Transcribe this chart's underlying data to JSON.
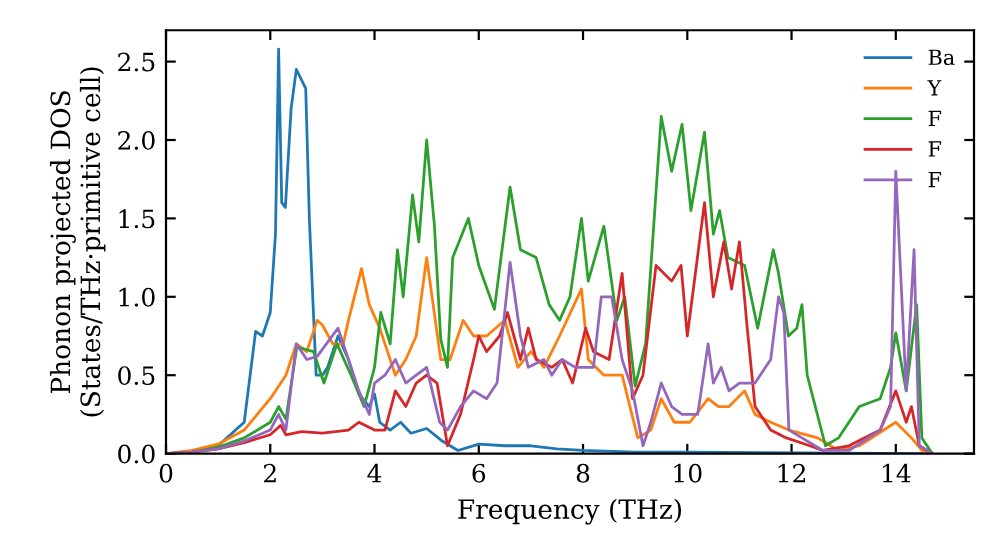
{
  "chart_data": {
    "type": "line",
    "xlabel": "Frequency (THz)",
    "ylabel": "Phonon projected DOS\n(States/THz·primitive cell)",
    "xlim": [
      0,
      15.5
    ],
    "ylim": [
      0,
      2.7
    ],
    "xticks": [
      0,
      2,
      4,
      6,
      8,
      10,
      12,
      14
    ],
    "yticks": [
      {
        "value": 0,
        "label": "0.0"
      },
      0.5,
      {
        "value": 1,
        "label": "1.0"
      },
      1.5,
      {
        "value": 2,
        "label": "2.0"
      },
      2.5
    ],
    "legend": "top right",
    "grid": false,
    "marker": "none",
    "line_style": "solid",
    "series": [
      {
        "name": "Ba",
        "color": "#1f77b4",
        "x": [
          0,
          0.5,
          1.0,
          1.5,
          1.72,
          1.85,
          2.0,
          2.1,
          2.16,
          2.22,
          2.29,
          2.4,
          2.5,
          2.68,
          2.75,
          2.88,
          3.0,
          3.1,
          3.3,
          3.5,
          3.7,
          3.9,
          4.0,
          4.1,
          4.3,
          4.5,
          4.7,
          5.0,
          5.3,
          5.6,
          6.0,
          6.5,
          7.0,
          7.5,
          8.0,
          9.0,
          10.0,
          14.5
        ],
        "values": [
          0,
          0.01,
          0.05,
          0.2,
          0.78,
          0.75,
          0.9,
          1.4,
          2.58,
          1.6,
          1.57,
          2.2,
          2.45,
          2.33,
          1.5,
          0.5,
          0.5,
          0.55,
          0.75,
          0.6,
          0.38,
          0.3,
          0.38,
          0.2,
          0.15,
          0.2,
          0.13,
          0.16,
          0.08,
          0.02,
          0.06,
          0.05,
          0.05,
          0.03,
          0.02,
          0.01,
          0.01,
          0
        ]
      },
      {
        "name": "Y",
        "color": "#ff7f0e",
        "x": [
          0,
          0.5,
          1.0,
          1.5,
          2.0,
          2.3,
          2.5,
          2.7,
          2.9,
          3.0,
          3.2,
          3.4,
          3.5,
          3.75,
          3.9,
          4.1,
          4.4,
          4.6,
          4.8,
          5.0,
          5.27,
          5.45,
          5.7,
          5.9,
          6.15,
          6.5,
          6.75,
          7.0,
          7.25,
          7.55,
          7.97,
          8.1,
          8.4,
          8.75,
          8.9,
          9.05,
          9.3,
          9.5,
          9.75,
          10.05,
          10.4,
          10.6,
          10.8,
          11.1,
          11.3,
          11.6,
          11.95,
          12.5,
          12.9,
          13.3,
          14.0,
          14.3,
          14.5,
          14.7
        ],
        "values": [
          0,
          0.02,
          0.06,
          0.15,
          0.35,
          0.5,
          0.7,
          0.65,
          0.85,
          0.82,
          0.7,
          0.7,
          0.85,
          1.18,
          0.95,
          0.8,
          0.5,
          0.6,
          0.75,
          1.25,
          0.6,
          0.6,
          0.85,
          0.75,
          0.75,
          0.85,
          0.55,
          0.65,
          0.55,
          0.75,
          1.05,
          0.6,
          0.5,
          0.5,
          0.3,
          0.1,
          0.15,
          0.35,
          0.2,
          0.2,
          0.35,
          0.3,
          0.3,
          0.4,
          0.25,
          0.2,
          0.15,
          0.1,
          0.02,
          0.05,
          0.2,
          0.1,
          0.02,
          0
        ]
      },
      {
        "name": "F",
        "color": "#2ca02c",
        "x": [
          0,
          0.5,
          1.0,
          1.5,
          2.0,
          2.16,
          2.3,
          2.51,
          2.83,
          3.03,
          3.28,
          3.55,
          3.8,
          4.0,
          4.12,
          4.3,
          4.44,
          4.55,
          4.73,
          4.85,
          5.0,
          5.15,
          5.27,
          5.4,
          5.5,
          5.8,
          6.0,
          6.3,
          6.6,
          6.8,
          7.1,
          7.35,
          7.55,
          7.75,
          7.97,
          8.1,
          8.4,
          8.65,
          8.8,
          9.0,
          9.2,
          9.5,
          9.7,
          9.9,
          10.07,
          10.33,
          10.5,
          10.62,
          10.78,
          11.1,
          11.35,
          11.65,
          11.75,
          11.94,
          12.1,
          12.2,
          12.3,
          12.65,
          12.9,
          13.3,
          13.7,
          13.9,
          14.0,
          14.2,
          14.4,
          14.5,
          14.7
        ],
        "values": [
          0,
          0.01,
          0.04,
          0.1,
          0.2,
          0.3,
          0.22,
          0.68,
          0.65,
          0.45,
          0.7,
          0.5,
          0.3,
          0.55,
          0.9,
          0.7,
          1.3,
          1.0,
          1.65,
          1.35,
          2.0,
          1.45,
          0.73,
          0.55,
          1.25,
          1.5,
          1.2,
          0.92,
          1.7,
          1.3,
          1.25,
          0.95,
          0.85,
          1.0,
          1.5,
          1.1,
          1.45,
          0.85,
          1.0,
          0.43,
          0.7,
          2.15,
          1.8,
          2.1,
          1.55,
          2.05,
          1.4,
          1.55,
          1.25,
          1.2,
          0.8,
          1.3,
          1.15,
          0.75,
          0.8,
          0.95,
          0.5,
          0.05,
          0.1,
          0.3,
          0.35,
          0.55,
          0.77,
          0.4,
          0.95,
          0.1,
          0
        ]
      },
      {
        "name": "F",
        "color": "#d62728",
        "x": [
          0,
          0.5,
          1.0,
          1.5,
          2.0,
          2.2,
          2.3,
          2.6,
          3.0,
          3.5,
          3.7,
          4.0,
          4.2,
          4.4,
          4.6,
          4.8,
          5.0,
          5.2,
          5.4,
          5.65,
          5.9,
          6.0,
          6.15,
          6.4,
          6.55,
          6.8,
          6.95,
          7.1,
          7.4,
          7.6,
          7.8,
          8.05,
          8.2,
          8.5,
          8.75,
          8.95,
          9.15,
          9.4,
          9.7,
          9.88,
          10.0,
          10.33,
          10.5,
          10.7,
          10.85,
          11.0,
          11.15,
          11.3,
          11.6,
          11.9,
          12.35,
          12.6,
          13.1,
          13.7,
          14.0,
          14.2,
          14.3,
          14.45,
          14.7
        ],
        "values": [
          0,
          0.01,
          0.03,
          0.07,
          0.12,
          0.18,
          0.12,
          0.14,
          0.13,
          0.15,
          0.2,
          0.15,
          0.15,
          0.4,
          0.3,
          0.45,
          0.5,
          0.45,
          0.05,
          0.25,
          0.6,
          0.75,
          0.65,
          0.75,
          0.9,
          0.6,
          0.8,
          0.6,
          0.55,
          0.6,
          0.45,
          0.8,
          0.65,
          0.6,
          1.15,
          0.35,
          0.5,
          1.2,
          1.1,
          1.2,
          0.75,
          1.6,
          1.0,
          1.35,
          1.05,
          1.35,
          0.8,
          0.3,
          0.15,
          0.1,
          0.05,
          0.02,
          0.05,
          0.15,
          0.4,
          0.2,
          0.3,
          0.05,
          0
        ]
      },
      {
        "name": "F",
        "color": "#9467bd",
        "x": [
          0,
          0.5,
          1.0,
          1.5,
          2.0,
          2.16,
          2.3,
          2.5,
          2.7,
          2.9,
          3.3,
          3.5,
          3.7,
          3.9,
          4.0,
          4.2,
          4.4,
          4.6,
          4.8,
          5.0,
          5.25,
          5.4,
          5.65,
          5.9,
          6.15,
          6.35,
          6.6,
          6.8,
          6.95,
          7.25,
          7.4,
          7.6,
          7.85,
          8.2,
          8.35,
          8.55,
          8.75,
          8.95,
          9.15,
          9.3,
          9.5,
          9.7,
          9.9,
          10.2,
          10.4,
          10.5,
          10.65,
          10.8,
          11.0,
          11.3,
          11.6,
          11.75,
          11.85,
          11.95,
          12.2,
          12.6,
          13.1,
          13.7,
          13.9,
          14.0,
          14.2,
          14.35,
          14.45,
          14.7
        ],
        "values": [
          0,
          0.01,
          0.03,
          0.08,
          0.15,
          0.25,
          0.15,
          0.7,
          0.6,
          0.62,
          0.8,
          0.6,
          0.4,
          0.25,
          0.45,
          0.5,
          0.6,
          0.45,
          0.5,
          0.55,
          0.2,
          0.15,
          0.3,
          0.4,
          0.35,
          0.45,
          1.22,
          0.75,
          0.55,
          0.6,
          0.5,
          0.6,
          0.55,
          0.55,
          1.0,
          1.0,
          0.6,
          0.4,
          0.05,
          0.2,
          0.45,
          0.3,
          0.25,
          0.25,
          0.7,
          0.45,
          0.55,
          0.4,
          0.45,
          0.45,
          0.6,
          1.0,
          0.9,
          0.15,
          0.1,
          0.02,
          0.02,
          0.15,
          0.3,
          1.8,
          0.4,
          1.3,
          0.05,
          0
        ]
      }
    ]
  }
}
